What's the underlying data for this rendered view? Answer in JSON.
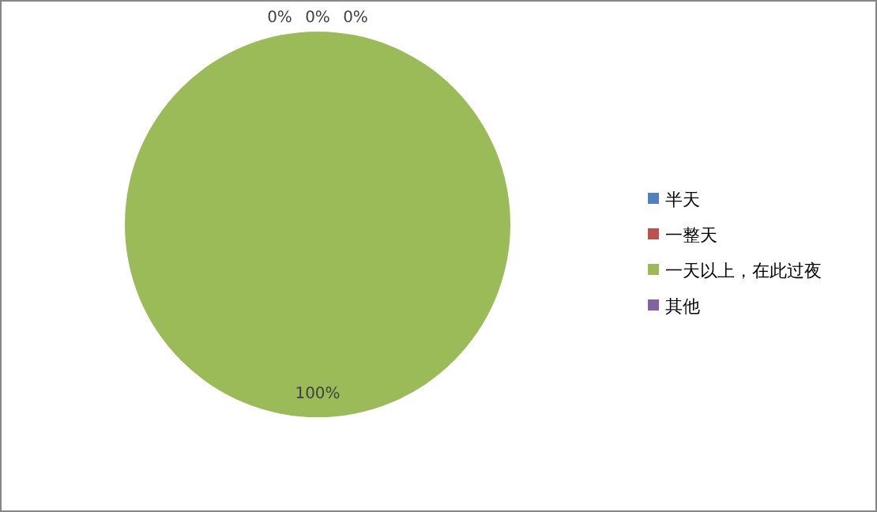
{
  "chart_data": {
    "type": "pie",
    "categories": [
      "半天",
      "一整天",
      "一天以上，在此过夜",
      "其他"
    ],
    "values": [
      0,
      0,
      100,
      0
    ],
    "value_labels": [
      "0%",
      "0%",
      "100%",
      "0%"
    ],
    "colors": [
      "#4f81bd",
      "#c0504d",
      "#9bbb59",
      "#8064a2"
    ],
    "legend": "right"
  }
}
